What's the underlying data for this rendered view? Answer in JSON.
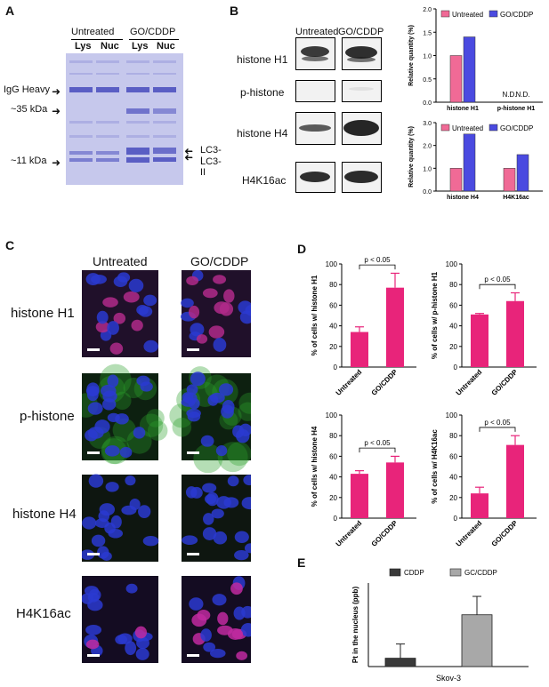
{
  "panels": {
    "A": {
      "letter": "A",
      "groups": [
        "Untreated",
        "GO/CDDP"
      ],
      "lanes": [
        "Lys",
        "Nuc",
        "Lys",
        "Nuc"
      ],
      "markers_left": [
        "IgG Heavy",
        "~35 kDa",
        "~11 kDa"
      ],
      "markers_right": [
        "LC3-I",
        "LC3-II"
      ]
    },
    "B": {
      "letter": "B",
      "columns": [
        "Untreated",
        "GO/CDDP"
      ],
      "rows": [
        "histone H1",
        "p-histone",
        "histone H4",
        "H4K16ac"
      ]
    },
    "C": {
      "letter": "C",
      "columns": [
        "Untreated",
        "GO/CDDP"
      ],
      "rows": [
        "histone H1",
        "p-histone",
        "histone H4",
        "H4K16ac"
      ]
    },
    "D": {
      "letter": "D"
    },
    "E": {
      "letter": "E"
    }
  },
  "colors": {
    "pink_light": "#f06a96",
    "blue_bar": "#4a4ae0",
    "magenta_bar": "#e8247a",
    "cddp_bar": "#3a3a3a",
    "gc_bar": "#a8a8a8",
    "gel_bg": "#c4c6ea",
    "gel_band": "#6468c8"
  },
  "chart_data": [
    {
      "id": "B1",
      "type": "bar",
      "categories": [
        "histone H1",
        "p-histone H1"
      ],
      "series": [
        {
          "name": "Untreated",
          "values": [
            1.0,
            null
          ]
        },
        {
          "name": "GO/CDDP",
          "values": [
            1.4,
            null
          ]
        }
      ],
      "annotations": [
        "N.D.",
        "N.D."
      ],
      "ylabel": "Relative quantity (%)",
      "ylim": [
        0,
        2.0
      ],
      "yticks": [
        "0.0",
        "0.5",
        "1.0",
        "1.5",
        "2.0"
      ],
      "legend": "top"
    },
    {
      "id": "B2",
      "type": "bar",
      "categories": [
        "histone H4",
        "H4K16ac"
      ],
      "series": [
        {
          "name": "Untreated",
          "values": [
            1.0,
            1.0
          ]
        },
        {
          "name": "GO/CDDP",
          "values": [
            2.5,
            1.6
          ]
        }
      ],
      "ylabel": "Relative quantity (%)",
      "ylim": [
        0,
        3.0
      ],
      "yticks": [
        "0.0",
        "1.0",
        "2.0",
        "3.0"
      ],
      "legend": "top"
    },
    {
      "id": "D1",
      "type": "bar",
      "categories": [
        "Untreated",
        "GO/CDDP"
      ],
      "values": [
        34,
        77
      ],
      "errors": [
        5,
        14
      ],
      "annotation": "p < 0.05",
      "ylabel": "% of cells w/ histone H1",
      "ylim": [
        0,
        100
      ],
      "yticks": [
        "0",
        "20",
        "40",
        "60",
        "80",
        "100"
      ]
    },
    {
      "id": "D2",
      "type": "bar",
      "categories": [
        "Untreated",
        "GO/CDDP"
      ],
      "values": [
        51,
        64
      ],
      "errors": [
        1,
        8
      ],
      "annotation": "p < 0.05",
      "ylabel": "% of cells w/ p-histone H1",
      "ylim": [
        0,
        100
      ],
      "yticks": [
        "0",
        "20",
        "40",
        "60",
        "80",
        "100"
      ]
    },
    {
      "id": "D3",
      "type": "bar",
      "categories": [
        "Untreated",
        "GO/CDDP"
      ],
      "values": [
        43,
        54
      ],
      "errors": [
        3,
        6
      ],
      "annotation": "p < 0.05",
      "ylabel": "% of cells w/ histone H4",
      "ylim": [
        0,
        100
      ],
      "yticks": [
        "0",
        "20",
        "40",
        "60",
        "80",
        "100"
      ]
    },
    {
      "id": "D4",
      "type": "bar",
      "categories": [
        "Untreated",
        "GO/CDDP"
      ],
      "values": [
        24,
        71
      ],
      "errors": [
        6,
        9
      ],
      "annotation": "p < 0.05",
      "ylabel": "% of cells w/ H4K16ac",
      "ylim": [
        0,
        100
      ],
      "yticks": [
        "0",
        "20",
        "40",
        "60",
        "80",
        "100"
      ]
    },
    {
      "id": "E",
      "type": "bar",
      "categories": [
        "Skov-3"
      ],
      "series": [
        {
          "name": "CDDP",
          "values": [
            0.1
          ],
          "errors": [
            0.17
          ]
        },
        {
          "name": "GC/CDDP",
          "values": [
            0.62
          ],
          "errors": [
            0.22
          ]
        }
      ],
      "ylabel": "Pt in the nucleus (ppb)",
      "ylim": [
        0,
        1.0
      ],
      "legend": "top"
    }
  ]
}
